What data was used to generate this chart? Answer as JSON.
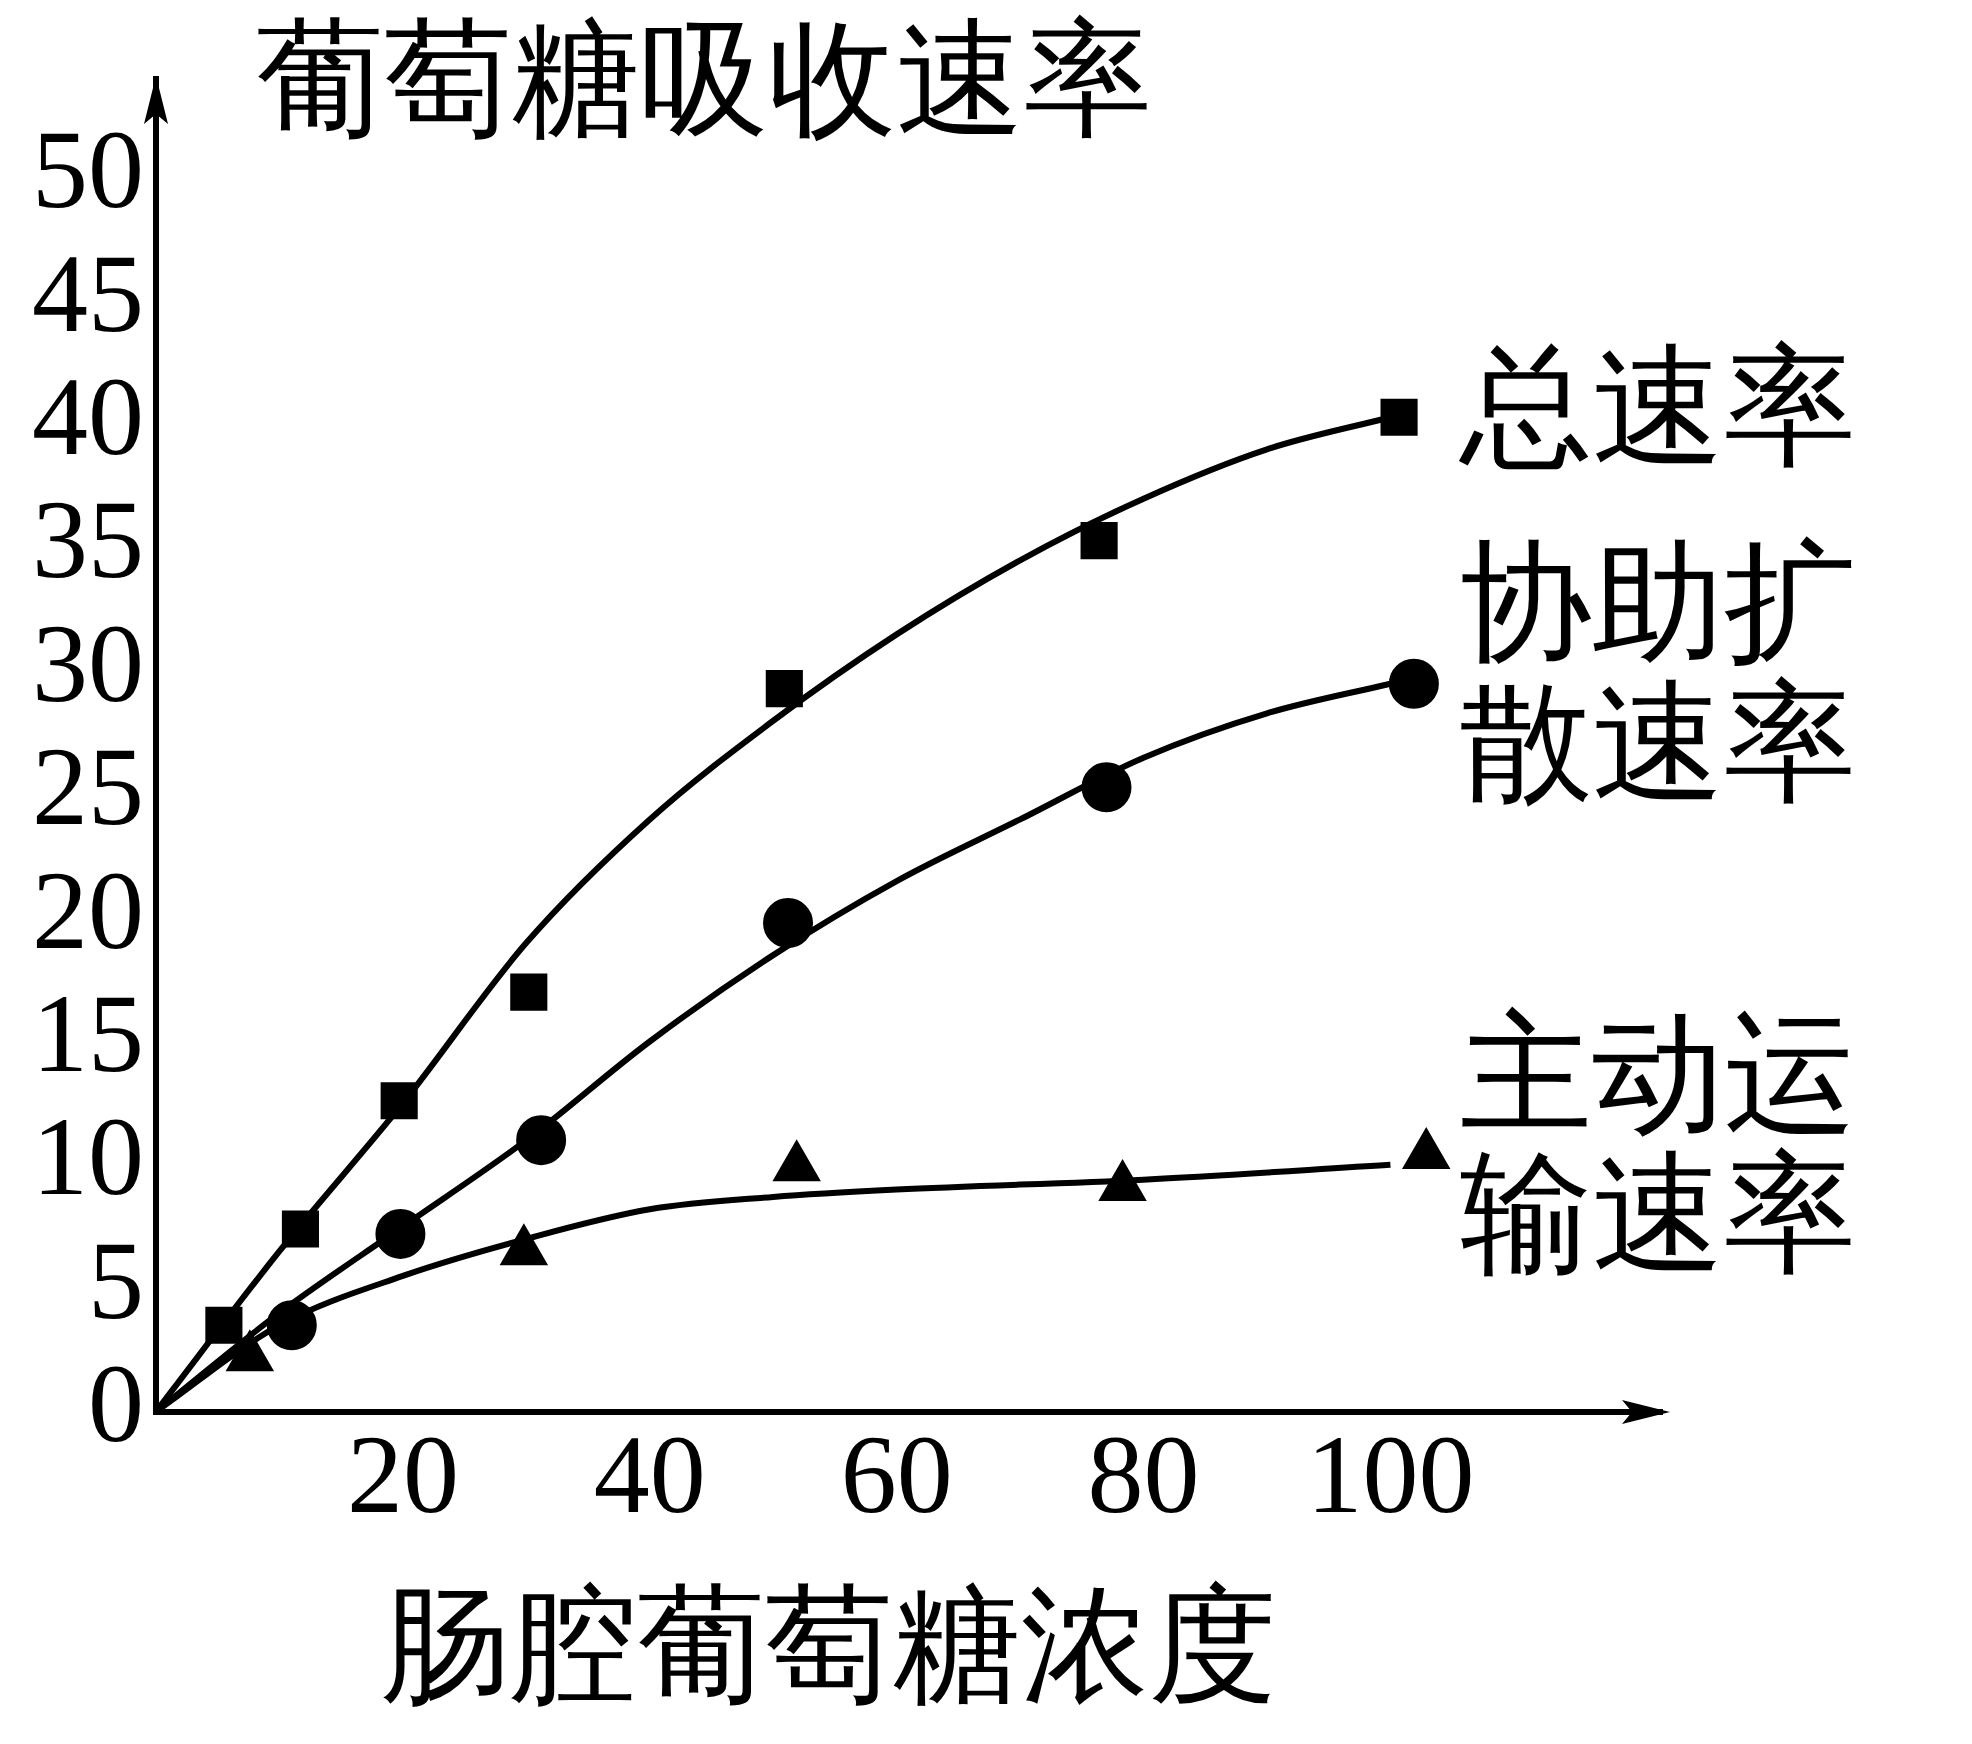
{
  "chart_data": {
    "type": "scatter",
    "ylabel": "葡萄糖吸收速率",
    "xlabel": "肠腔葡萄糖浓度",
    "xlim": [
      0,
      122
    ],
    "ylim": [
      0,
      54
    ],
    "xticks": [
      20,
      40,
      60,
      80,
      100
    ],
    "yticks": [
      0,
      5,
      10,
      15,
      20,
      25,
      30,
      35,
      40,
      45,
      50
    ],
    "grid": false,
    "legend": false,
    "series": [
      {
        "name": "总速率",
        "marker": "square",
        "color": "#000000",
        "x": [
          5.5,
          11.7,
          19.7,
          30.2,
          50.9,
          76.4,
          100.7
        ],
        "values": [
          3.5,
          7.4,
          12.6,
          17.0,
          29.3,
          35.3,
          40.3
        ]
      },
      {
        "name": "协助扩散速率",
        "marker": "circle",
        "color": "#000000",
        "x": [
          11,
          19.8,
          31.2,
          51.2,
          77,
          101.9
        ],
        "values": [
          3.5,
          7.2,
          11.0,
          19.8,
          25.3,
          29.5
        ]
      },
      {
        "name": "主动运输速率",
        "marker": "triangle",
        "color": "#000000",
        "x": [
          7.6,
          29.8,
          51.9,
          78.3,
          102.9
        ],
        "values": [
          2.2,
          6.5,
          9.9,
          9.1,
          10.4
        ]
      },
      {
        "type": "line",
        "marker": "none",
        "color": "#000000",
        "x": [
          0,
          10,
          20,
          30,
          40,
          50,
          60,
          70,
          80,
          90,
          100
        ],
        "values": [
          0,
          6.5,
          12.5,
          19,
          24,
          28,
          31.5,
          34.5,
          37,
          39,
          40.3
        ]
      },
      {
        "type": "line",
        "marker": "none",
        "color": "#000000",
        "x": [
          0,
          10,
          20,
          30,
          40,
          50,
          60,
          70,
          80,
          90,
          100
        ],
        "values": [
          0,
          4,
          7.5,
          11,
          15,
          18.5,
          21.5,
          24,
          26.5,
          28.3,
          29.5
        ]
      },
      {
        "type": "line",
        "marker": "none",
        "color": "#000000",
        "x": [
          0,
          10,
          20,
          30,
          40,
          50,
          60,
          80,
          100
        ],
        "values": [
          0,
          3.5,
          5.5,
          7,
          8.2,
          8.7,
          9,
          9.4,
          10
        ]
      }
    ]
  }
}
